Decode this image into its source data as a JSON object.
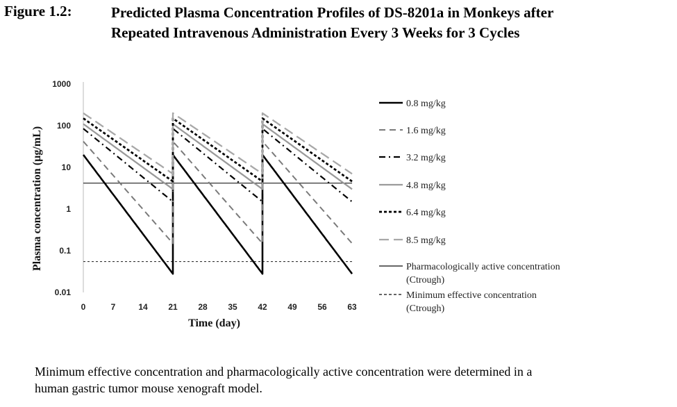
{
  "figure": {
    "label": "Figure 1.2:",
    "title_line1": "Predicted Plasma Concentration Profiles of DS-8201a in Monkeys after",
    "title_line2": "Repeated Intravenous Administration Every 3 Weeks for 3 Cycles"
  },
  "caption": {
    "line1": "Minimum effective concentration and pharmacologically active concentration were determined in a",
    "line2": "human gastric tumor mouse xenograft model."
  },
  "chart_data": {
    "type": "line",
    "xlabel": "Time (day)",
    "ylabel": "Plasma concentration (µg/mL)",
    "xlim": [
      0,
      63
    ],
    "ylim": [
      0.01,
      1000
    ],
    "yscale": "log",
    "x_ticks": [
      0,
      7,
      14,
      21,
      28,
      35,
      42,
      49,
      56,
      63
    ],
    "y_ticks": [
      {
        "value": 1000,
        "label": "1000"
      },
      {
        "value": 100,
        "label": "100"
      },
      {
        "value": 10,
        "label": "10"
      },
      {
        "value": 1,
        "label": "1"
      },
      {
        "value": 0.1,
        "label": "0.1"
      },
      {
        "value": 0.01,
        "label": "0.01"
      }
    ],
    "dosing_days": [
      0,
      21,
      42
    ],
    "series": [
      {
        "name": "0.8 mg/kg",
        "style": "solid",
        "color": "#000000",
        "width": 2.6,
        "peak": 20,
        "trough": 0.028,
        "dose_x": [
          0,
          21,
          42
        ]
      },
      {
        "name": "1.6 mg/kg",
        "style": "dashed",
        "color": "#7a7a7a",
        "width": 2.0,
        "peak": 42,
        "trough": 0.15,
        "dose_x": [
          0,
          21,
          42
        ]
      },
      {
        "name": "3.2 mg/kg",
        "style": "dashdot",
        "color": "#000000",
        "width": 2.2,
        "peak": 85,
        "trough": 1.5,
        "dose_x": [
          0,
          21,
          42
        ]
      },
      {
        "name": "4.8 mg/kg",
        "style": "solid",
        "color": "#9a9a9a",
        "width": 2.3,
        "peak": 110,
        "trough": 3.0,
        "dose_x": [
          0,
          21,
          42
        ]
      },
      {
        "name": "6.4 mg/kg",
        "style": "dotted",
        "color": "#000000",
        "width": 2.8,
        "peak": 150,
        "trough": 4.6,
        "dose_x": [
          0,
          21,
          42
        ]
      },
      {
        "name": "8.5 mg/kg",
        "style": "longdash",
        "color": "#a8a8a8",
        "width": 2.3,
        "peak": 200,
        "trough": 7.0,
        "dose_x": [
          0,
          21,
          42
        ]
      }
    ],
    "reference_lines": [
      {
        "name": "Pharmacologically active concentration",
        "name2": "(Ctrough)",
        "value": 4.2,
        "style": "solid",
        "color": "#333333"
      },
      {
        "name": "Minimum effective concentration",
        "name2": "(Ctrough)",
        "value": 0.055,
        "style": "dotted",
        "color": "#333333"
      }
    ]
  }
}
